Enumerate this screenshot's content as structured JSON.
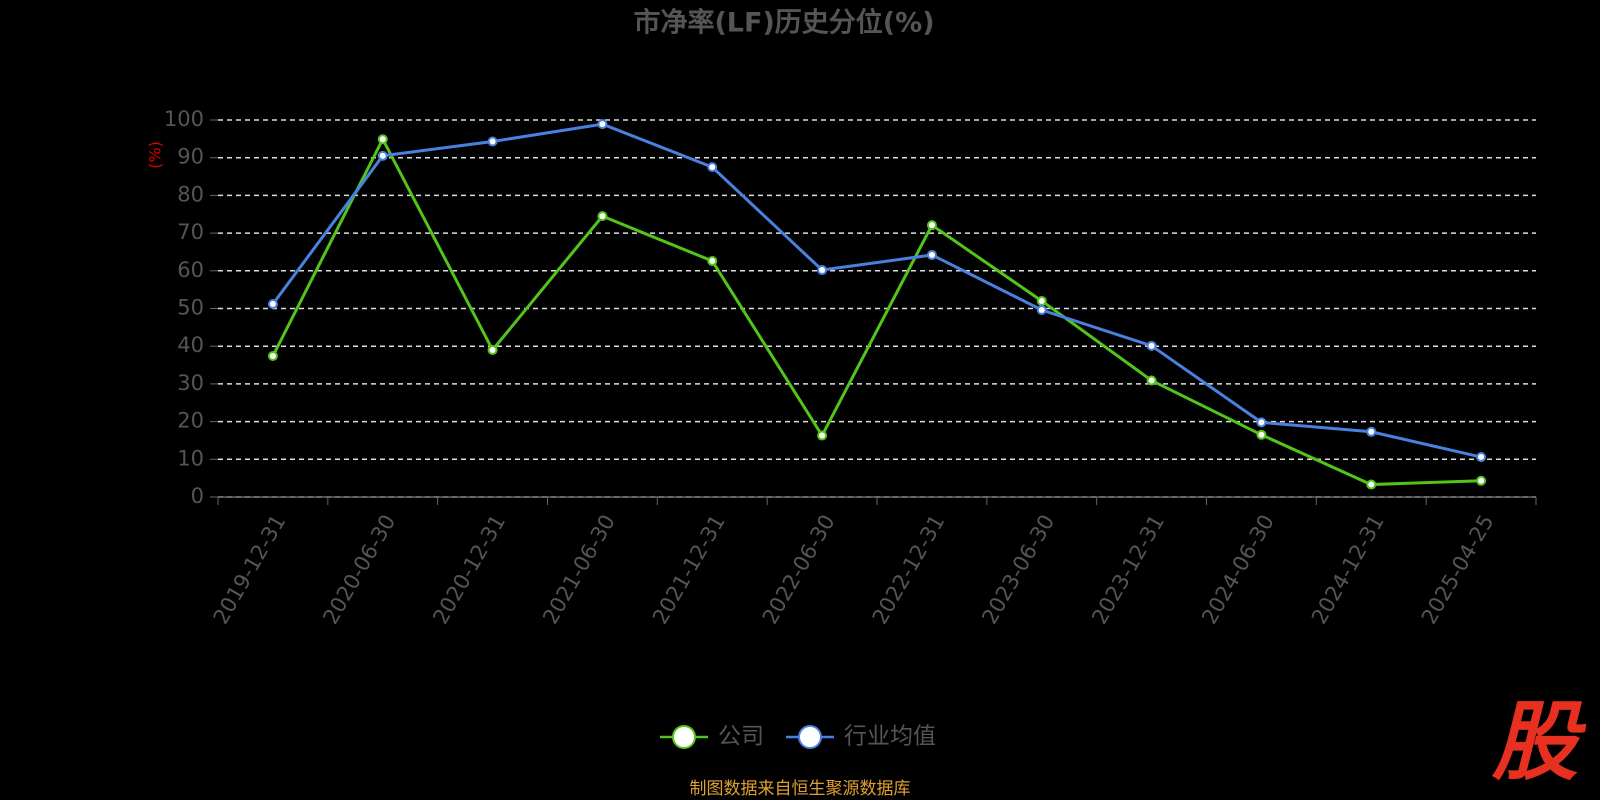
{
  "chart_data": {
    "type": "line",
    "title": "市净率(LF)历史分位(%)",
    "y_label": "(%)",
    "categories": [
      "2019-12-31",
      "2020-06-30",
      "2020-12-31",
      "2021-06-30",
      "2021-12-31",
      "2022-06-30",
      "2022-12-31",
      "2023-06-30",
      "2023-12-31",
      "2024-06-30",
      "2024-12-31",
      "2025-04-25"
    ],
    "series": [
      {
        "name": "公司",
        "color": "#52c41a",
        "values": [
          37.4,
          94.9,
          39.0,
          74.5,
          62.6,
          16.3,
          72.1,
          52.0,
          30.9,
          16.5,
          3.3,
          4.3
        ]
      },
      {
        "name": "行业均值",
        "color": "#4a80e0",
        "values": [
          51.2,
          90.5,
          94.3,
          98.9,
          87.5,
          60.2,
          64.2,
          49.6,
          40.1,
          19.8,
          17.3,
          10.6
        ]
      }
    ],
    "ylim": [
      0,
      100
    ],
    "yticks": [
      0,
      10,
      20,
      30,
      40,
      50,
      60,
      70,
      80,
      90,
      100
    ],
    "grid": true,
    "legend": "bottom",
    "source": "制图数据来自恒生聚源数据库",
    "watermark": "股"
  }
}
